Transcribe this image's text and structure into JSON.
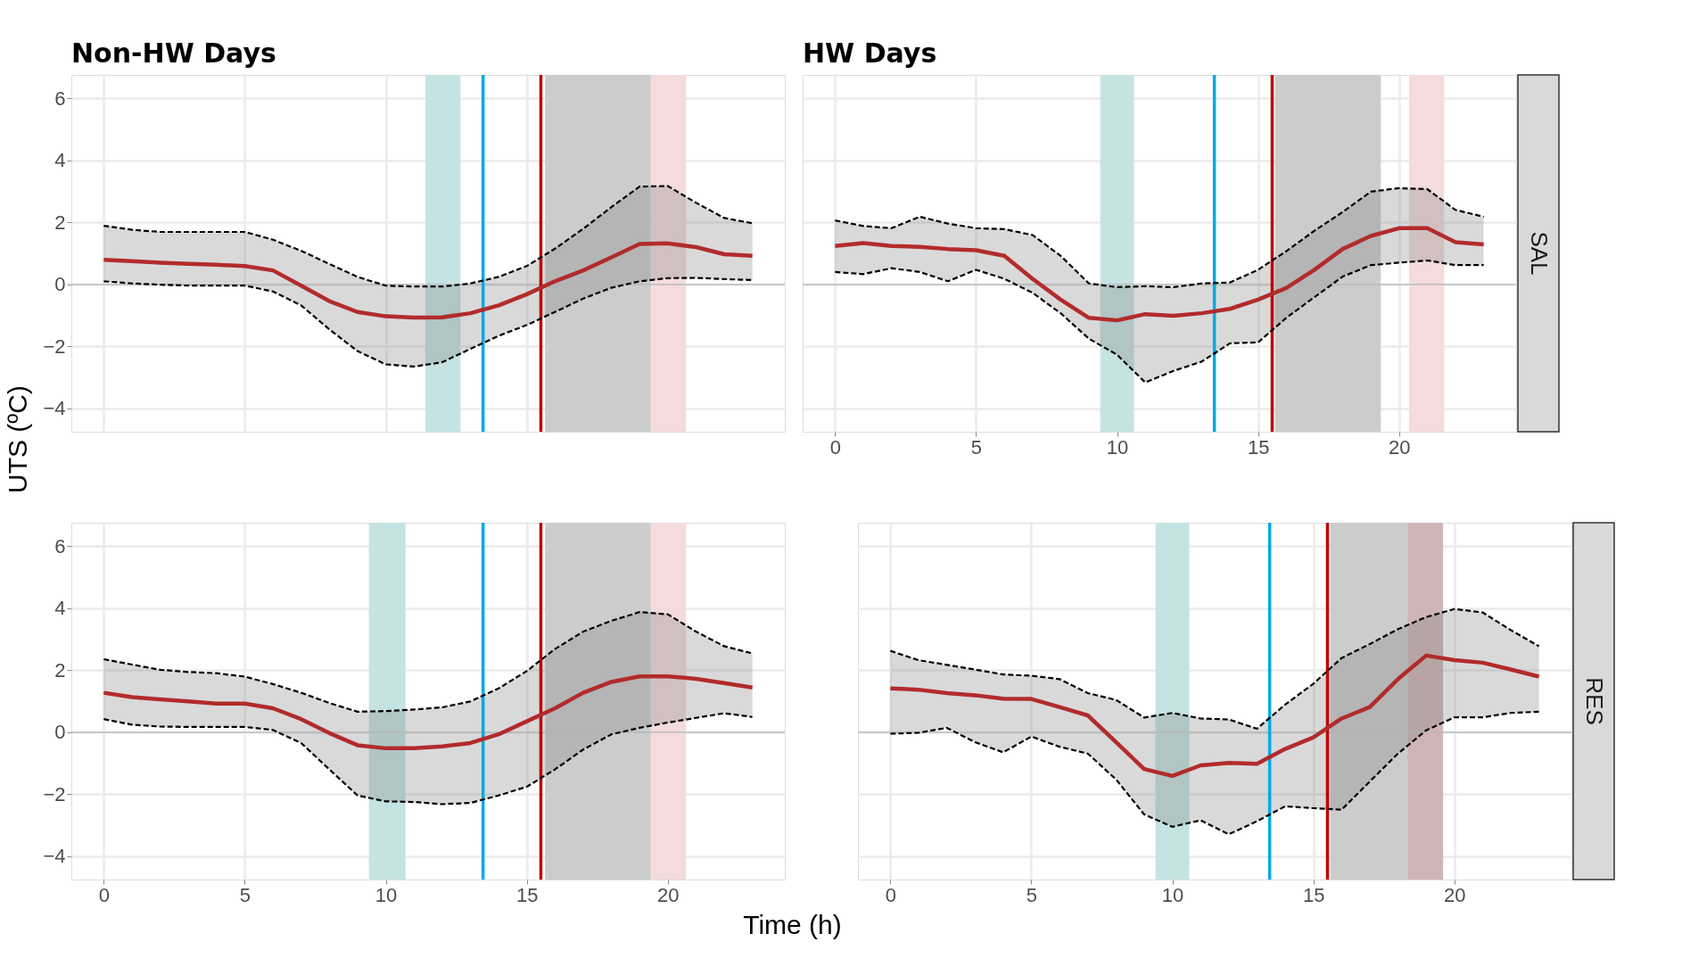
{
  "chart_data": [
    {
      "type": "line",
      "title": "Non-HW Days",
      "ylabel": "UTS (ºC)",
      "x": [
        0,
        1,
        2,
        3,
        4,
        5,
        6,
        7,
        8,
        9,
        10,
        11,
        12,
        13,
        14,
        15,
        16,
        17,
        18,
        19,
        20,
        21,
        22,
        23
      ],
      "xlim": [
        -1.15,
        24.15
      ],
      "xticks": [
        0,
        5,
        10,
        15,
        20
      ],
      "ylim": [
        -4.75,
        6.75
      ],
      "yticks": [
        -4,
        -2,
        0,
        2,
        4,
        6
      ],
      "grid": true,
      "tick_labels": "y",
      "series": [
        {
          "color": "#b22b2b",
          "line_style": "solid",
          "values": [
            0.79,
            0.75,
            0.7,
            0.66,
            0.63,
            0.59,
            0.45,
            -0.04,
            -0.54,
            -0.89,
            -1.03,
            -1.07,
            -1.06,
            -0.93,
            -0.68,
            -0.32,
            0.1,
            0.45,
            0.87,
            1.3,
            1.32,
            1.2,
            0.97,
            0.92
          ],
          "lower": [
            0.1,
            0.03,
            -0.01,
            -0.04,
            -0.04,
            -0.04,
            -0.23,
            -0.68,
            -1.45,
            -2.15,
            -2.58,
            -2.65,
            -2.51,
            -2.08,
            -1.66,
            -1.31,
            -0.89,
            -0.46,
            -0.11,
            0.1,
            0.2,
            0.21,
            0.17,
            0.14
          ],
          "upper": [
            1.89,
            1.76,
            1.69,
            1.69,
            1.69,
            1.69,
            1.44,
            1.08,
            0.66,
            0.24,
            -0.04,
            -0.07,
            -0.07,
            0.03,
            0.24,
            0.59,
            1.15,
            1.79,
            2.49,
            3.15,
            3.17,
            2.63,
            2.14,
            1.97
          ]
        },
        {
          "color": "#000000",
          "line_style": "dashed",
          "values": [
            0.1,
            0.03,
            -0.01,
            -0.04,
            -0.04,
            -0.04,
            -0.23,
            -0.68,
            -1.45,
            -2.15,
            -2.58,
            -2.65,
            -2.51,
            -2.08,
            -1.66,
            -1.31,
            -0.89,
            -0.46,
            -0.11,
            0.1,
            0.2,
            0.21,
            0.17,
            0.14
          ]
        },
        {
          "color": "#000000",
          "line_style": "dashed",
          "values": [
            1.89,
            1.76,
            1.69,
            1.69,
            1.69,
            1.69,
            1.44,
            1.08,
            0.66,
            0.24,
            -0.04,
            -0.07,
            -0.07,
            0.03,
            0.24,
            0.59,
            1.15,
            1.79,
            2.49,
            3.15,
            3.17,
            2.63,
            2.14,
            1.97
          ]
        }
      ],
      "bands": [
        {
          "axis": "x",
          "from": 11.4,
          "to": 12.65,
          "color": "#c6e3e3"
        },
        {
          "axis": "x",
          "from": 15.65,
          "to": 19.4,
          "color": "#cccccc"
        },
        {
          "axis": "x",
          "from": 19.4,
          "to": 20.65,
          "color": "#f4dcdc"
        }
      ],
      "ref_lines": [
        {
          "axis": "y",
          "value": 0,
          "color": "#b3b3b3"
        },
        {
          "axis": "x",
          "value": 13.45,
          "color": "#00a9e6"
        },
        {
          "axis": "x",
          "value": 15.5,
          "color": "#c00000"
        }
      ]
    },
    {
      "type": "line",
      "title": "HW Days",
      "annotations": [
        "SAL"
      ],
      "x": [
        0,
        1,
        2,
        3,
        4,
        5,
        6,
        7,
        8,
        9,
        10,
        11,
        12,
        13,
        14,
        15,
        16,
        17,
        18,
        19,
        20,
        21,
        22,
        23
      ],
      "xlim": [
        -1.15,
        24.15
      ],
      "xticks": [
        0,
        5,
        10,
        15,
        20
      ],
      "ylim": [
        -4.75,
        6.75
      ],
      "yticks": [
        -4,
        -2,
        0,
        2,
        4,
        6
      ],
      "grid": true,
      "tick_labels": "x",
      "series": [
        {
          "color": "#b22b2b",
          "line_style": "solid",
          "values": [
            1.24,
            1.33,
            1.24,
            1.21,
            1.14,
            1.1,
            0.92,
            0.18,
            -0.49,
            -1.08,
            -1.16,
            -0.96,
            -1.01,
            -0.93,
            -0.79,
            -0.49,
            -0.12,
            0.47,
            1.14,
            1.56,
            1.81,
            1.81,
            1.36,
            1.29
          ],
          "lower": [
            0.4,
            0.33,
            0.52,
            0.4,
            0.1,
            0.47,
            0.18,
            -0.27,
            -0.93,
            -1.75,
            -2.27,
            -3.16,
            -2.79,
            -2.49,
            -1.9,
            -1.87,
            -1.08,
            -0.41,
            0.25,
            0.62,
            0.7,
            0.77,
            0.62,
            0.62
          ],
          "upper": [
            2.06,
            1.88,
            1.81,
            2.18,
            1.96,
            1.81,
            1.78,
            1.59,
            0.92,
            0.03,
            -0.09,
            -0.06,
            -0.09,
            0.03,
            0.06,
            0.47,
            1.07,
            1.73,
            2.33,
            2.99,
            3.1,
            3.07,
            2.4,
            2.18
          ]
        },
        {
          "color": "#000000",
          "line_style": "dashed",
          "values": [
            0.4,
            0.33,
            0.52,
            0.4,
            0.1,
            0.47,
            0.18,
            -0.27,
            -0.93,
            -1.75,
            -2.27,
            -3.16,
            -2.79,
            -2.49,
            -1.9,
            -1.87,
            -1.08,
            -0.41,
            0.25,
            0.62,
            0.7,
            0.77,
            0.62,
            0.62
          ]
        },
        {
          "color": "#000000",
          "line_style": "dashed",
          "values": [
            2.06,
            1.88,
            1.81,
            2.18,
            1.96,
            1.81,
            1.78,
            1.59,
            0.92,
            0.03,
            -0.09,
            -0.06,
            -0.09,
            0.03,
            0.06,
            0.47,
            1.07,
            1.73,
            2.33,
            2.99,
            3.1,
            3.07,
            2.4,
            2.18
          ]
        }
      ],
      "bands": [
        {
          "axis": "x",
          "from": 9.4,
          "to": 10.6,
          "color": "#c6e3e3"
        },
        {
          "axis": "x",
          "from": 15.6,
          "to": 19.35,
          "color": "#cccccc"
        },
        {
          "axis": "x",
          "from": 20.35,
          "to": 21.6,
          "color": "#f4dcdc"
        }
      ],
      "ref_lines": [
        {
          "axis": "y",
          "value": 0,
          "color": "#b3b3b3"
        },
        {
          "axis": "x",
          "value": 13.45,
          "color": "#00a9e6"
        },
        {
          "axis": "x",
          "value": 15.5,
          "color": "#c00000"
        }
      ]
    },
    {
      "type": "line",
      "xlabel": "Time (h)",
      "x": [
        0,
        1,
        2,
        3,
        4,
        5,
        6,
        7,
        8,
        9,
        10,
        11,
        12,
        13,
        14,
        15,
        16,
        17,
        18,
        19,
        20,
        21,
        22,
        23
      ],
      "xlim": [
        -1.15,
        24.15
      ],
      "xticks": [
        0,
        5,
        10,
        15,
        20
      ],
      "ylim": [
        -4.75,
        6.75
      ],
      "yticks": [
        -4,
        -2,
        0,
        2,
        4,
        6
      ],
      "grid": true,
      "series": [
        {
          "color": "#b22b2b",
          "line_style": "solid",
          "values": [
            1.27,
            1.13,
            1.06,
            0.99,
            0.92,
            0.92,
            0.77,
            0.42,
            -0.03,
            -0.42,
            -0.52,
            -0.52,
            -0.46,
            -0.35,
            -0.07,
            0.35,
            0.77,
            1.27,
            1.62,
            1.8,
            1.8,
            1.72,
            1.58,
            1.44
          ],
          "lower": [
            0.42,
            0.24,
            0.18,
            0.17,
            0.17,
            0.17,
            0.07,
            -0.35,
            -1.2,
            -2.04,
            -2.23,
            -2.25,
            -2.32,
            -2.28,
            -2.04,
            -1.76,
            -1.2,
            -0.56,
            -0.07,
            0.14,
            0.31,
            0.46,
            0.61,
            0.49
          ],
          "upper": [
            2.35,
            2.18,
            2.01,
            1.94,
            1.9,
            1.79,
            1.55,
            1.27,
            0.94,
            0.66,
            0.68,
            0.73,
            0.8,
            0.99,
            1.41,
            1.97,
            2.68,
            3.24,
            3.59,
            3.87,
            3.8,
            3.24,
            2.77,
            2.54
          ]
        },
        {
          "color": "#000000",
          "line_style": "dashed",
          "values": [
            0.42,
            0.24,
            0.18,
            0.17,
            0.17,
            0.17,
            0.07,
            -0.35,
            -1.2,
            -2.04,
            -2.23,
            -2.25,
            -2.32,
            -2.28,
            -2.04,
            -1.76,
            -1.2,
            -0.56,
            -0.07,
            0.14,
            0.31,
            0.46,
            0.61,
            0.49
          ]
        },
        {
          "color": "#000000",
          "line_style": "dashed",
          "values": [
            2.35,
            2.18,
            2.01,
            1.94,
            1.9,
            1.79,
            1.55,
            1.27,
            0.94,
            0.66,
            0.68,
            0.73,
            0.8,
            0.99,
            1.41,
            1.97,
            2.68,
            3.24,
            3.59,
            3.87,
            3.8,
            3.24,
            2.77,
            2.54
          ]
        }
      ],
      "bands": [
        {
          "axis": "x",
          "from": 9.4,
          "to": 10.7,
          "color": "#c6e3e3"
        },
        {
          "axis": "x",
          "from": 15.65,
          "to": 19.4,
          "color": "#cccccc"
        },
        {
          "axis": "x",
          "from": 19.4,
          "to": 20.65,
          "color": "#f4dcdc"
        }
      ],
      "ref_lines": [
        {
          "axis": "y",
          "value": 0,
          "color": "#b3b3b3"
        },
        {
          "axis": "x",
          "value": 13.45,
          "color": "#00a9e6"
        },
        {
          "axis": "x",
          "value": 15.5,
          "color": "#c00000"
        }
      ]
    },
    {
      "type": "line",
      "annotations": [
        "RES"
      ],
      "x": [
        0,
        1,
        2,
        3,
        4,
        5,
        6,
        7,
        8,
        9,
        10,
        11,
        12,
        13,
        14,
        15,
        16,
        17,
        18,
        19,
        20,
        21,
        22,
        23
      ],
      "xlim": [
        -1.15,
        24.15
      ],
      "xticks": [
        0,
        5,
        10,
        15,
        20
      ],
      "ylim": [
        -4.75,
        6.75
      ],
      "yticks": [
        -4,
        -2,
        0,
        2,
        4,
        6
      ],
      "grid": true,
      "tick_labels": "x",
      "series": [
        {
          "color": "#b22b2b",
          "line_style": "solid",
          "values": [
            1.41,
            1.37,
            1.26,
            1.19,
            1.08,
            1.07,
            0.81,
            0.54,
            -0.32,
            -1.19,
            -1.41,
            -1.07,
            -0.99,
            -1.02,
            -0.54,
            -0.17,
            0.44,
            0.81,
            1.71,
            2.47,
            2.32,
            2.24,
            2.02,
            1.79
          ],
          "lower": [
            -0.05,
            -0.02,
            0.14,
            -0.32,
            -0.65,
            -0.14,
            -0.47,
            -0.69,
            -1.52,
            -2.65,
            -3.05,
            -2.84,
            -3.29,
            -2.87,
            -2.39,
            -2.45,
            -2.5,
            -1.59,
            -0.69,
            0.06,
            0.48,
            0.48,
            0.62,
            0.66
          ],
          "upper": [
            2.62,
            2.32,
            2.17,
            2.02,
            1.86,
            1.82,
            1.71,
            1.26,
            1.04,
            0.47,
            0.62,
            0.44,
            0.41,
            0.11,
            0.89,
            1.56,
            2.39,
            2.84,
            3.32,
            3.71,
            3.97,
            3.86,
            3.29,
            2.77
          ]
        },
        {
          "color": "#000000",
          "line_style": "dashed",
          "values": [
            -0.05,
            -0.02,
            0.14,
            -0.32,
            -0.65,
            -0.14,
            -0.47,
            -0.69,
            -1.52,
            -2.65,
            -3.05,
            -2.84,
            -3.29,
            -2.87,
            -2.39,
            -2.45,
            -2.5,
            -1.59,
            -0.69,
            0.06,
            0.48,
            0.48,
            0.62,
            0.66
          ]
        },
        {
          "color": "#000000",
          "line_style": "dashed",
          "values": [
            2.62,
            2.32,
            2.17,
            2.02,
            1.86,
            1.82,
            1.71,
            1.26,
            1.04,
            0.47,
            0.62,
            0.44,
            0.41,
            0.11,
            0.89,
            1.56,
            2.39,
            2.84,
            3.32,
            3.71,
            3.97,
            3.86,
            3.29,
            2.77
          ]
        }
      ],
      "bands": [
        {
          "axis": "x",
          "from": 9.4,
          "to": 10.6,
          "color": "#c6e3e3"
        },
        {
          "axis": "x",
          "from": 15.6,
          "to": 19.35,
          "color": "#cccccc"
        },
        {
          "axis": "x",
          "from": 18.35,
          "to": 19.6,
          "color": "#cfb5b5"
        }
      ],
      "ref_lines": [
        {
          "axis": "y",
          "value": 0,
          "color": "#b3b3b3"
        },
        {
          "axis": "x",
          "value": 13.45,
          "color": "#00a9e6"
        },
        {
          "axis": "x",
          "value": 15.5,
          "color": "#c00000"
        }
      ]
    }
  ]
}
